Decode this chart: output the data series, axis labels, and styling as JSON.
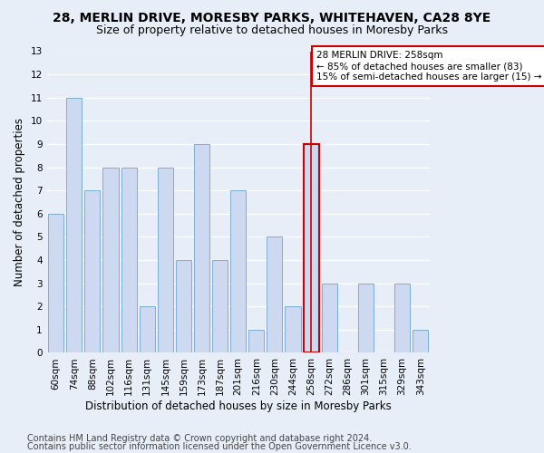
{
  "title": "28, MERLIN DRIVE, MORESBY PARKS, WHITEHAVEN, CA28 8YE",
  "subtitle": "Size of property relative to detached houses in Moresby Parks",
  "xlabel": "Distribution of detached houses by size in Moresby Parks",
  "ylabel": "Number of detached properties",
  "categories": [
    "60sqm",
    "74sqm",
    "88sqm",
    "102sqm",
    "116sqm",
    "131sqm",
    "145sqm",
    "159sqm",
    "173sqm",
    "187sqm",
    "201sqm",
    "216sqm",
    "230sqm",
    "244sqm",
    "258sqm",
    "272sqm",
    "286sqm",
    "301sqm",
    "315sqm",
    "329sqm",
    "343sqm"
  ],
  "values": [
    6,
    11,
    7,
    8,
    8,
    2,
    8,
    4,
    9,
    4,
    7,
    1,
    5,
    2,
    9,
    3,
    0,
    3,
    0,
    3,
    1
  ],
  "bar_color": "#ccd9f0",
  "bar_edge_color": "#7bafd4",
  "highlight_index": 14,
  "highlight_line_color": "#cc0000",
  "ylim": [
    0,
    13
  ],
  "yticks": [
    0,
    1,
    2,
    3,
    4,
    5,
    6,
    7,
    8,
    9,
    10,
    11,
    12,
    13
  ],
  "annotation_text": "28 MERLIN DRIVE: 258sqm\n← 85% of detached houses are smaller (83)\n15% of semi-detached houses are larger (15) →",
  "annotation_box_color": "#ffffff",
  "annotation_border_color": "#cc0000",
  "footer_line1": "Contains HM Land Registry data © Crown copyright and database right 2024.",
  "footer_line2": "Contains public sector information licensed under the Open Government Licence v3.0.",
  "background_color": "#e8eef8",
  "grid_color": "#ffffff",
  "title_fontsize": 10,
  "subtitle_fontsize": 9,
  "axis_label_fontsize": 8.5,
  "tick_fontsize": 7.5,
  "footer_fontsize": 7
}
